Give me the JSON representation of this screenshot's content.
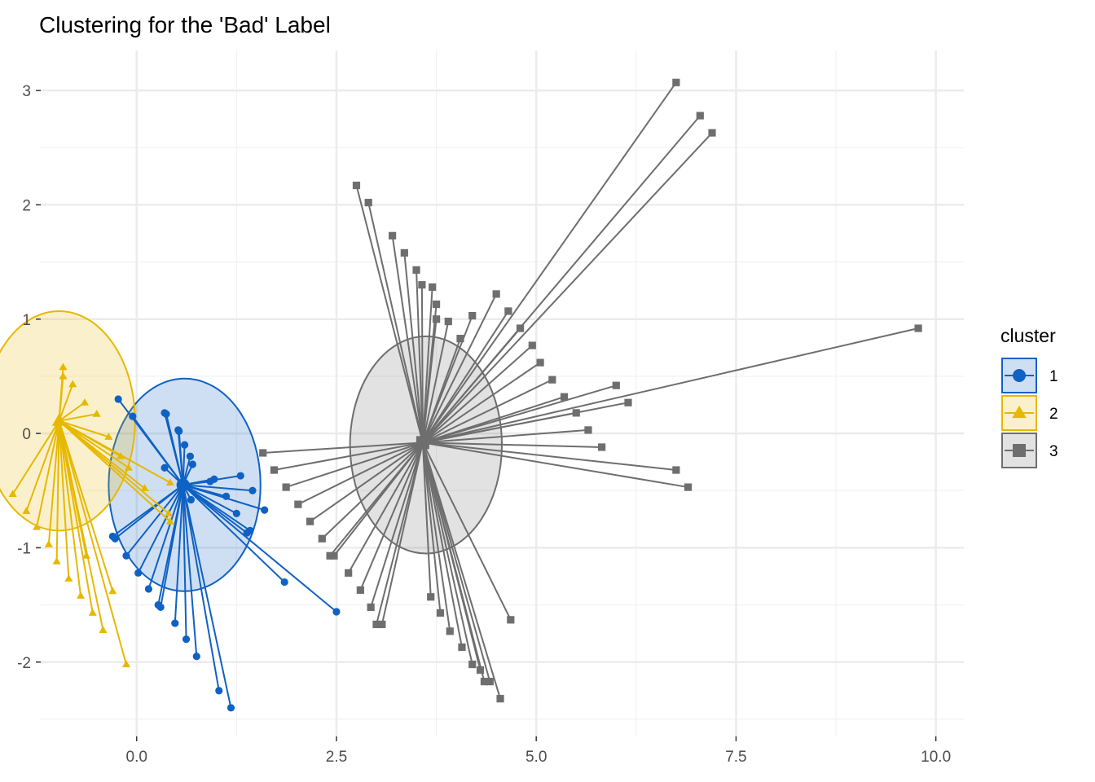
{
  "chart_data": {
    "type": "scatter",
    "title": "Clustering for the 'Bad' Label",
    "xlabel": "",
    "ylabel": "",
    "xlim": [
      -1.2,
      10.35
    ],
    "ylim": [
      -2.65,
      3.35
    ],
    "x_ticks": [
      0.0,
      2.5,
      5.0,
      7.5,
      10.0
    ],
    "x_tick_labels": [
      "0.0",
      "2.5",
      "5.0",
      "7.5",
      "10.0"
    ],
    "y_ticks": [
      -2,
      -1,
      0,
      1,
      2,
      3
    ],
    "y_tick_labels": [
      "-2",
      "-1",
      "0",
      "1",
      "2",
      "3"
    ],
    "grid": true,
    "legend": {
      "title": "cluster",
      "placement": "right"
    },
    "series": [
      {
        "name": "1",
        "color": "#0F61C4",
        "marker": "circle",
        "centroid": [
          0.58,
          -0.45
        ],
        "ellipse": {
          "cx": 0.6,
          "cy": -0.45,
          "rx": 0.95,
          "ry": 0.93
        },
        "points": [
          [
            -0.23,
            0.3
          ],
          [
            -0.05,
            0.15
          ],
          [
            0.35,
            0.18
          ],
          [
            0.37,
            0.17
          ],
          [
            0.52,
            0.03
          ],
          [
            0.53,
            0.02
          ],
          [
            0.6,
            -0.1
          ],
          [
            0.67,
            -0.2
          ],
          [
            0.7,
            -0.27
          ],
          [
            0.35,
            -0.3
          ],
          [
            0.97,
            -0.4
          ],
          [
            0.92,
            -0.42
          ],
          [
            1.3,
            -0.37
          ],
          [
            1.12,
            -0.55
          ],
          [
            1.45,
            -0.5
          ],
          [
            1.25,
            -0.7
          ],
          [
            1.6,
            -0.67
          ],
          [
            1.42,
            -0.85
          ],
          [
            1.38,
            -0.87
          ],
          [
            1.85,
            -1.3
          ],
          [
            2.5,
            -1.56
          ],
          [
            -0.3,
            -0.9
          ],
          [
            -0.27,
            -0.92
          ],
          [
            -0.13,
            -1.07
          ],
          [
            0.02,
            -1.22
          ],
          [
            0.15,
            -1.36
          ],
          [
            0.27,
            -1.5
          ],
          [
            0.3,
            -1.52
          ],
          [
            0.48,
            -1.66
          ],
          [
            0.62,
            -1.8
          ],
          [
            0.75,
            -1.95
          ],
          [
            1.03,
            -2.25
          ],
          [
            1.18,
            -2.4
          ],
          [
            0.68,
            -0.58
          ]
        ]
      },
      {
        "name": "2",
        "color": "#E7B800",
        "marker": "triangle",
        "centroid": [
          -0.97,
          0.11
        ],
        "ellipse": {
          "cx": -0.97,
          "cy": 0.11,
          "rx": 0.95,
          "ry": 0.96
        },
        "points": [
          [
            -0.92,
            0.58
          ],
          [
            -0.92,
            0.5
          ],
          [
            -0.8,
            0.43
          ],
          [
            -0.65,
            0.27
          ],
          [
            -0.5,
            0.17
          ],
          [
            -0.35,
            -0.03
          ],
          [
            -0.2,
            -0.2
          ],
          [
            -0.1,
            -0.3
          ],
          [
            0.1,
            -0.48
          ],
          [
            0.42,
            -0.43
          ],
          [
            0.4,
            -0.7
          ],
          [
            0.42,
            -0.77
          ],
          [
            -1.55,
            -0.53
          ],
          [
            -1.38,
            -0.68
          ],
          [
            -1.25,
            -0.82
          ],
          [
            -1.1,
            -0.97
          ],
          [
            -1.0,
            -1.12
          ],
          [
            -0.85,
            -1.27
          ],
          [
            -0.7,
            -1.42
          ],
          [
            -0.63,
            -1.07
          ],
          [
            -0.55,
            -1.57
          ],
          [
            -0.42,
            -1.72
          ],
          [
            -0.3,
            -1.38
          ],
          [
            -0.13,
            -2.02
          ]
        ]
      },
      {
        "name": "3",
        "color": "#6E6E6E",
        "marker": "square",
        "centroid": [
          3.58,
          -0.08
        ],
        "ellipse": {
          "cx": 3.62,
          "cy": -0.1,
          "rx": 0.95,
          "ry": 0.95
        },
        "points": [
          [
            2.75,
            2.17
          ],
          [
            2.9,
            2.02
          ],
          [
            3.2,
            1.73
          ],
          [
            3.35,
            1.58
          ],
          [
            3.5,
            1.43
          ],
          [
            3.57,
            1.3
          ],
          [
            3.7,
            1.28
          ],
          [
            3.75,
            1.13
          ],
          [
            3.75,
            1.0
          ],
          [
            3.9,
            0.98
          ],
          [
            4.05,
            0.83
          ],
          [
            4.2,
            1.03
          ],
          [
            4.5,
            1.22
          ],
          [
            4.65,
            1.07
          ],
          [
            4.8,
            0.92
          ],
          [
            4.95,
            0.77
          ],
          [
            5.05,
            0.62
          ],
          [
            5.2,
            0.47
          ],
          [
            5.35,
            0.32
          ],
          [
            5.5,
            0.18
          ],
          [
            5.65,
            0.03
          ],
          [
            5.82,
            -0.12
          ],
          [
            6.0,
            0.42
          ],
          [
            6.15,
            0.27
          ],
          [
            6.75,
            3.07
          ],
          [
            7.05,
            2.78
          ],
          [
            7.2,
            2.63
          ],
          [
            9.78,
            0.92
          ],
          [
            6.75,
            -0.32
          ],
          [
            6.9,
            -0.47
          ],
          [
            1.58,
            -0.17
          ],
          [
            1.72,
            -0.32
          ],
          [
            1.87,
            -0.47
          ],
          [
            2.02,
            -0.62
          ],
          [
            2.17,
            -0.77
          ],
          [
            2.32,
            -0.92
          ],
          [
            2.42,
            -1.07
          ],
          [
            2.47,
            -1.07
          ],
          [
            2.65,
            -1.22
          ],
          [
            2.8,
            -1.37
          ],
          [
            2.93,
            -1.52
          ],
          [
            3.0,
            -1.67
          ],
          [
            3.07,
            -1.67
          ],
          [
            3.68,
            -1.43
          ],
          [
            3.8,
            -1.57
          ],
          [
            3.92,
            -1.73
          ],
          [
            4.07,
            -1.87
          ],
          [
            4.2,
            -2.02
          ],
          [
            4.3,
            -2.07
          ],
          [
            4.35,
            -2.17
          ],
          [
            4.42,
            -2.17
          ],
          [
            4.55,
            -2.32
          ],
          [
            4.68,
            -1.63
          ]
        ]
      }
    ]
  }
}
